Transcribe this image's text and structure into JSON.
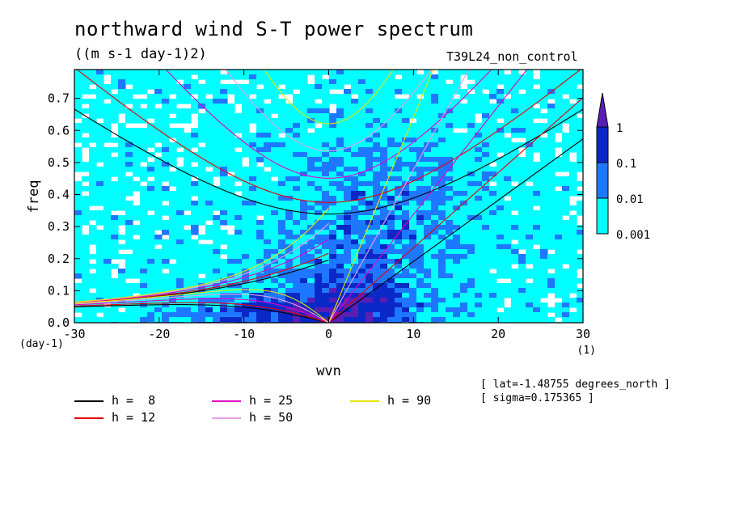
{
  "header": {
    "title": "northward wind S-T power spectrum",
    "units": "((m s-1 day-1)2)",
    "run": "T39L24_non_control"
  },
  "chart_data": {
    "type": "heatmap",
    "xlabel": "wvn",
    "ylabel": "freq",
    "x_unit_label": "(1)",
    "y_unit_label": "(day-1)",
    "xlim": [
      -30,
      30
    ],
    "ylim": [
      0,
      0.79
    ],
    "x_ticks": [
      -30,
      -20,
      -10,
      0,
      10,
      20,
      30
    ],
    "x_tick_labels": [
      "-30",
      "-20",
      "-10",
      "0",
      "10",
      "20",
      "30"
    ],
    "y_ticks": [
      0.0,
      0.1,
      0.2,
      0.3,
      0.4,
      0.5,
      0.6,
      0.7
    ],
    "y_tick_labels": [
      "0.0",
      "0.1",
      "0.2",
      "0.3",
      "0.4",
      "0.5",
      "0.6",
      "0.7"
    ],
    "colorbar": {
      "levels": [
        0.001,
        0.01,
        0.1,
        1
      ],
      "labels": [
        "0.001",
        "0.01",
        "0.1",
        "1"
      ],
      "colors": [
        "#00ffff",
        "#1e78ff",
        "#0a28c8",
        "#5a1eb4"
      ]
    },
    "series": [
      {
        "name": "h =  8",
        "h": 8,
        "color": "#000000"
      },
      {
        "name": "h = 12",
        "h": 12,
        "color": "#e60000"
      },
      {
        "name": "h = 25",
        "h": 25,
        "color": "#e600c8"
      },
      {
        "name": "h = 50",
        "h": 50,
        "color": "#e6a0e6"
      },
      {
        "name": "h = 90",
        "h": 90,
        "color": "#e6e600"
      }
    ]
  },
  "info": {
    "lat": "[ lat=-1.48755 degrees_north ]",
    "sigma": "[ sigma=0.175365 ]"
  }
}
